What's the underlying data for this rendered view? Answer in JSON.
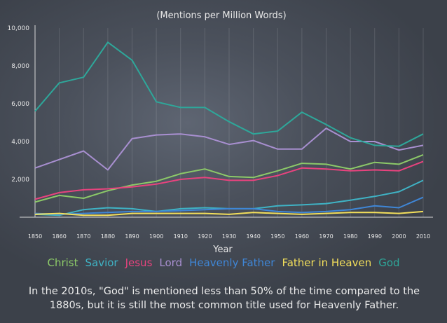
{
  "chart_data": {
    "type": "line",
    "title": "(Mentions per Million Words)",
    "xlabel": "Year",
    "ylabel": "",
    "ylim": [
      0,
      10000
    ],
    "xlim": [
      1850,
      2010
    ],
    "yticks": [
      "10,000",
      "8,000",
      "6,000",
      "4,000",
      "2,000"
    ],
    "ytick_values": [
      10000,
      8000,
      6000,
      4000,
      2000
    ],
    "x": [
      1850,
      1860,
      1870,
      1880,
      1890,
      1900,
      1910,
      1920,
      1930,
      1940,
      1950,
      1960,
      1970,
      1980,
      1990,
      2000,
      2010
    ],
    "series": [
      {
        "name": "Christ",
        "color": "#8cc968",
        "values": [
          800,
          1150,
          1000,
          1400,
          1700,
          1900,
          2300,
          2550,
          2150,
          2100,
          2450,
          2850,
          2800,
          2550,
          2900,
          2800,
          3300
        ]
      },
      {
        "name": "Savior",
        "color": "#3fb3c5",
        "values": [
          150,
          100,
          400,
          500,
          450,
          300,
          450,
          500,
          450,
          450,
          600,
          650,
          720,
          900,
          1100,
          1350,
          1950
        ]
      },
      {
        "name": "Jesus",
        "color": "#e8437e",
        "values": [
          950,
          1300,
          1450,
          1500,
          1600,
          1750,
          2000,
          2100,
          1950,
          1950,
          2200,
          2600,
          2550,
          2450,
          2500,
          2450,
          2950
        ]
      },
      {
        "name": "Lord",
        "color": "#a88fd0",
        "values": [
          2600,
          3050,
          3500,
          2500,
          4150,
          4350,
          4400,
          4250,
          3850,
          4050,
          3600,
          3600,
          4700,
          4000,
          4000,
          3550,
          3800
        ]
      },
      {
        "name": "Heavenly Father",
        "color": "#3f86d6",
        "values": [
          200,
          150,
          200,
          250,
          300,
          300,
          350,
          400,
          450,
          450,
          300,
          250,
          300,
          400,
          600,
          500,
          1050
        ]
      },
      {
        "name": "Father in Heaven",
        "color": "#f3df5b",
        "values": [
          150,
          200,
          100,
          100,
          200,
          200,
          200,
          200,
          150,
          250,
          200,
          150,
          200,
          250,
          250,
          200,
          300
        ]
      },
      {
        "name": "God",
        "color": "#2ea79a",
        "values": [
          5600,
          7100,
          7400,
          9250,
          8300,
          6100,
          5800,
          5800,
          5050,
          4400,
          4550,
          5550,
          4900,
          4200,
          3800,
          3750,
          4400
        ]
      }
    ]
  },
  "caption": "In the 2010s, \"God\" is mentioned less than 50% of the time compared to the 1880s, but it is still the most common title used for Heavenly Father."
}
